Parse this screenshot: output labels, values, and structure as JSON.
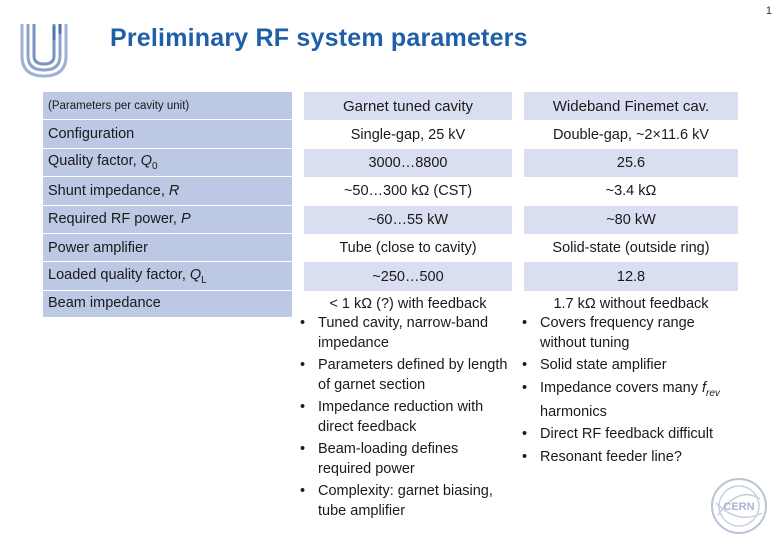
{
  "page_number": "1",
  "title": "Preliminary RF system parameters",
  "table": {
    "header": {
      "label": "(Parameters per cavity unit)",
      "col1": "Garnet tuned cavity",
      "col2": "Wideband Finemet cav."
    },
    "rows": [
      {
        "label": "Configuration",
        "col1": "Single-gap, 25 kV",
        "col2": "Double-gap, ~2×11.6 kV"
      },
      {
        "label": "Quality factor, ",
        "label_var": "Q",
        "label_sub": "0",
        "col1": "3000…8800",
        "col2": "25.6"
      },
      {
        "label": "Shunt impedance, ",
        "label_var": "R",
        "col1": "~50…300 kΩ (CST)",
        "col2": "~3.4 kΩ"
      },
      {
        "label": "Required RF power, ",
        "label_var": "P",
        "col1": "~60…55 kW",
        "col2": "~80 kW"
      },
      {
        "label": "Power amplifier",
        "col1": "Tube (close to cavity)",
        "col2": "Solid-state (outside ring)"
      },
      {
        "label": "Loaded quality factor, ",
        "label_var": "Q",
        "label_sub": "L",
        "col1": "~250…500",
        "col2": "12.8"
      },
      {
        "label": "Beam impedance",
        "col1": "< 1 kΩ (?) with feedback",
        "col2": "1.7 kΩ without feedback"
      }
    ]
  },
  "bullets_col1": [
    "Tuned cavity, narrow-band impedance",
    "Parameters defined by length of garnet section",
    "Impedance reduction with direct feedback",
    "Beam-loading defines required power",
    "Complexity: garnet biasing, tube amplifier"
  ],
  "bullets_col2": [
    {
      "text": "Covers frequency range without tuning"
    },
    {
      "text": "Solid state amplifier"
    },
    {
      "text_before": "Impedance covers many ",
      "var": "f",
      "sub": "rev",
      "text_after": " harmonics"
    },
    {
      "text": "Direct RF feedback difficult"
    },
    {
      "text": "Resonant feeder line?"
    }
  ],
  "colors": {
    "title": "#1f5fa8",
    "label_bg": "#bcc8e4",
    "alt_row_bg": "#d9dff0"
  },
  "icons": [
    "university-logo-icon",
    "cern-logo-icon"
  ]
}
